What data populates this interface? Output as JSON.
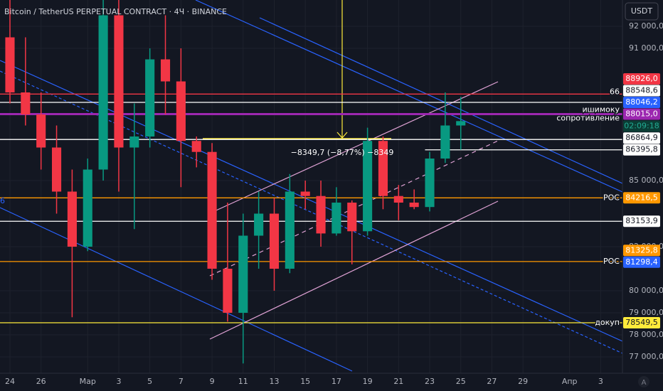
{
  "chart_data": {
    "type": "candlestick",
    "title": "Bitcoin / TetherUS PERPETUAL CONTRACT · 4Ч · BINANCE",
    "currency": "USDT",
    "scale_mode": "A",
    "up_color": "#089981",
    "down_color": "#f23645",
    "x": [
      0,
      1,
      2,
      3,
      4,
      5,
      6,
      7,
      8,
      9,
      10,
      11,
      12,
      13,
      14,
      15,
      16,
      17,
      18,
      19,
      20,
      21,
      22,
      23,
      24,
      25,
      26,
      27,
      28,
      29
    ],
    "open": [
      91500,
      89000,
      88000,
      86500,
      84500,
      82000,
      85500,
      92500,
      86500,
      87000,
      90500,
      89500,
      86800,
      86300,
      81000,
      79000,
      82500,
      83500,
      81000,
      84500,
      84300,
      82600,
      84000,
      82700,
      86800,
      84300,
      84000,
      83800,
      86000,
      87500
    ],
    "high": [
      93600,
      91500,
      89000,
      87500,
      85500,
      86000,
      93200,
      95000,
      88500,
      91000,
      92500,
      91000,
      87000,
      86700,
      84000,
      83500,
      84500,
      84200,
      85300,
      85000,
      85000,
      84700,
      84100,
      87400,
      87000,
      84800,
      84600,
      86300,
      89000,
      88800
    ],
    "low": [
      88500,
      87500,
      85500,
      83500,
      78800,
      81800,
      85000,
      84500,
      82800,
      86500,
      88000,
      84700,
      85600,
      80500,
      78600,
      76700,
      81000,
      80000,
      80800,
      83700,
      82000,
      82500,
      81200,
      82500,
      83700,
      83200,
      83700,
      83600,
      85800,
      86400
    ],
    "close": [
      89000,
      88000,
      86500,
      84500,
      82000,
      85500,
      92500,
      86500,
      87000,
      90500,
      89500,
      86800,
      86300,
      81000,
      79000,
      82500,
      83500,
      81000,
      84500,
      84300,
      82600,
      84000,
      82700,
      86800,
      84300,
      84000,
      83800,
      86000,
      87500,
      87700
    ],
    "xlim": [
      -0.64,
      39.4
    ],
    "xticks": [
      {
        "value": 0,
        "label": "24"
      },
      {
        "value": 2,
        "label": "26"
      },
      {
        "value": 5,
        "label": "Мар"
      },
      {
        "value": 7,
        "label": "3"
      },
      {
        "value": 9,
        "label": "5"
      },
      {
        "value": 11,
        "label": "7"
      },
      {
        "value": 13,
        "label": "9"
      },
      {
        "value": 15,
        "label": "11"
      },
      {
        "value": 17,
        "label": "13"
      },
      {
        "value": 19,
        "label": "15"
      },
      {
        "value": 21,
        "label": "17"
      },
      {
        "value": 23,
        "label": "19"
      },
      {
        "value": 25,
        "label": "21"
      },
      {
        "value": 27,
        "label": "23"
      },
      {
        "value": 29,
        "label": "25"
      },
      {
        "value": 31,
        "label": "27"
      },
      {
        "value": 33,
        "label": "29"
      },
      {
        "value": 36,
        "label": "Апр"
      },
      {
        "value": 38,
        "label": "3"
      }
    ],
    "ylim": [
      76258,
      93194
    ],
    "yticks": [
      {
        "value": 92000,
        "label": "92 000,0"
      },
      {
        "value": 91000,
        "label": "91 000,0"
      },
      {
        "value": 85000,
        "label": "85 000,0"
      },
      {
        "value": 82000,
        "label": "82 000,0"
      },
      {
        "value": 80000,
        "label": "80 000,0"
      },
      {
        "value": 79000,
        "label": "79 000,0"
      },
      {
        "value": 78000,
        "label": "78 000,0"
      },
      {
        "value": 77000,
        "label": "77 000,0"
      }
    ],
    "grid": true,
    "levels": [
      {
        "value": 88926,
        "label": "88926,0",
        "color": "#f23645",
        "note": "66"
      },
      {
        "value": 88548.6,
        "label": "88548,6",
        "color": "#ffffff"
      },
      {
        "value": 88046.2,
        "label": "88046,2",
        "color": "#2962ff",
        "line": false
      },
      {
        "value": 88015,
        "label": "88015,0",
        "color": "#9c27b0",
        "countdown": "02:09:18",
        "notes": [
          "ишимоку",
          "сопротивление"
        ]
      },
      {
        "value": 86864.9,
        "label": "86864,9",
        "color": "#ffffff"
      },
      {
        "value": 86395.8,
        "label": "86395,8",
        "color": "#ffffff",
        "start": 26.7
      },
      {
        "value": 84216.5,
        "label": "84216,5",
        "color": "#ff9800",
        "note": "POC"
      },
      {
        "value": 83153.9,
        "label": "83153,9",
        "color": "#ffffff"
      },
      {
        "value": 81325.8,
        "label": "81325,8",
        "color": "#ff9800",
        "note": "POC"
      },
      {
        "value": 81298.4,
        "label": "81298,4",
        "color": "#2962ff",
        "line": false
      },
      {
        "value": 78549.5,
        "label": "78549,5",
        "color": "#ffeb3b",
        "note": "докуп"
      }
    ],
    "annotations": [
      {
        "text": "−8349,7 (−8,77%) −8349"
      },
      {
        "text": "6"
      }
    ]
  }
}
